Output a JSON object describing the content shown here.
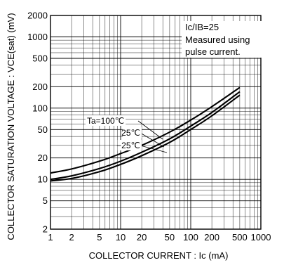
{
  "chart_data": {
    "type": "line",
    "xscale": "log",
    "yscale": "log",
    "xlim": [
      1,
      1000
    ],
    "ylim": [
      2,
      2000
    ],
    "grid": true,
    "xlabel": "COLLECTOR CURRENT : Ic (mA)",
    "ylabel": "COLLECTOR SATURATION VOLTAGE : VCE(sat) (mV)",
    "x_ticks": [
      "1",
      "2",
      "5",
      "10",
      "20",
      "50",
      "100",
      "200",
      "500",
      "1000"
    ],
    "y_ticks": [
      "2",
      "5",
      "10",
      "20",
      "50",
      "100",
      "200",
      "500",
      "1000",
      "2000"
    ],
    "notes": [
      "Ic/IB=25",
      "Measured using",
      "pulse current."
    ],
    "series": [
      {
        "name": "Ta=100℃",
        "x": [
          1,
          2,
          5,
          10,
          20,
          50,
          100,
          200,
          500
        ],
        "y": [
          12.3,
          14,
          18,
          23,
          30,
          46,
          68,
          105,
          195
        ]
      },
      {
        "name": "25℃",
        "x": [
          1,
          2,
          5,
          10,
          20,
          50,
          100,
          200,
          500
        ],
        "y": [
          10,
          11.2,
          14.2,
          18,
          24,
          37,
          56,
          87,
          170
        ]
      },
      {
        "name": "−25℃",
        "x": [
          1,
          2,
          5,
          10,
          20,
          50,
          100,
          200,
          500
        ],
        "y": [
          9.5,
          10.3,
          12.8,
          16.2,
          21.5,
          33,
          50,
          78,
          152
        ]
      }
    ]
  }
}
